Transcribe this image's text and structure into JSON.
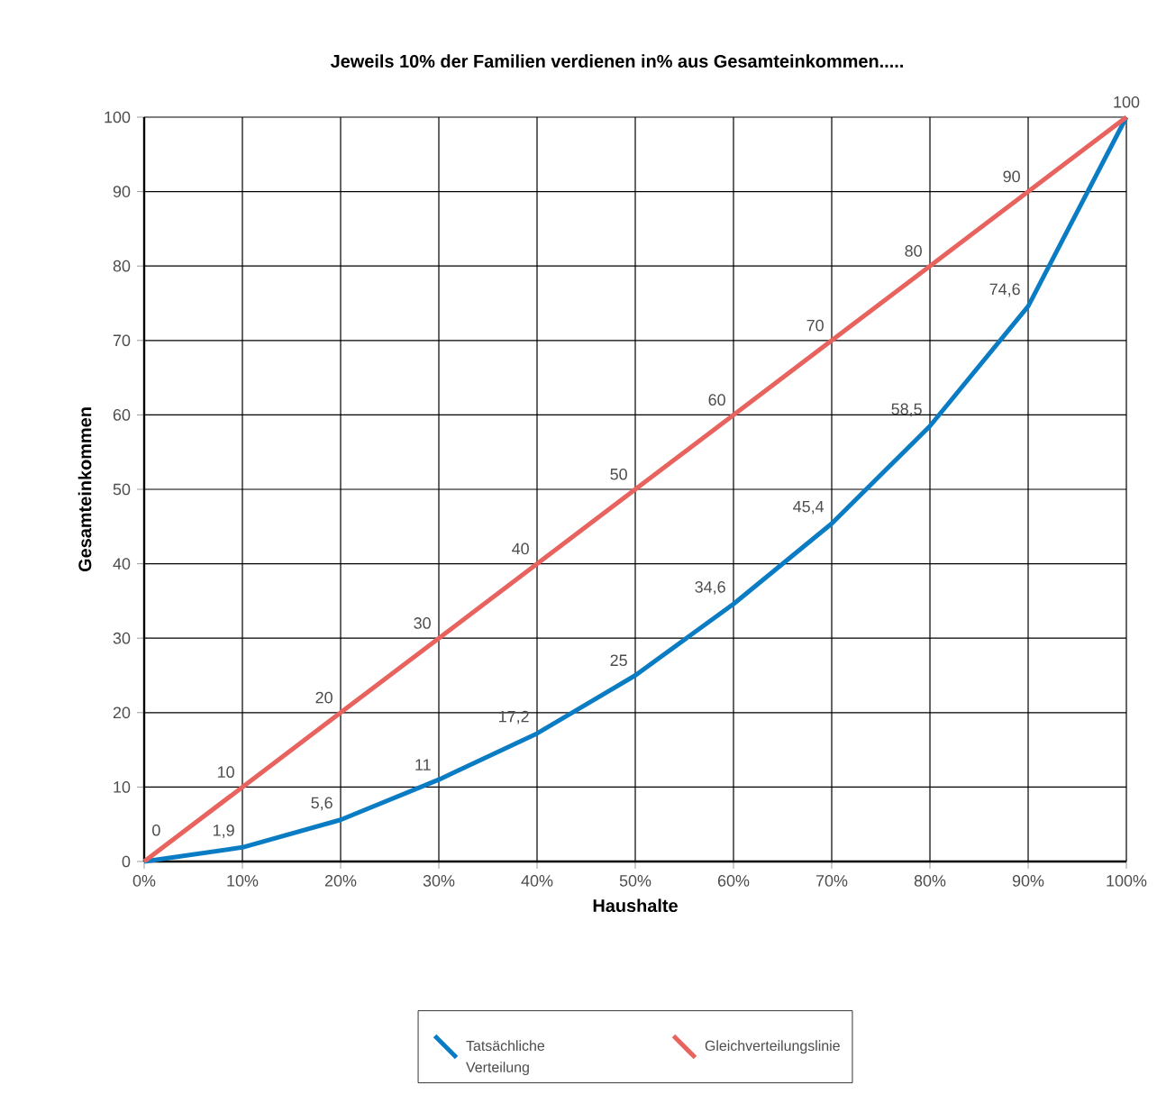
{
  "chart_data": {
    "type": "line",
    "title": "Jeweils 10% der Familien verdienen in% aus Gesamteinkommen.....",
    "xlabel": "Haushalte",
    "ylabel": "Gesamteinkommen",
    "x": [
      0,
      10,
      20,
      30,
      40,
      50,
      60,
      70,
      80,
      90,
      100
    ],
    "series": [
      {
        "name": "Tatsächliche Verteilung",
        "color": "#0a7cc4",
        "values": [
          0,
          1.9,
          5.6,
          11,
          17.2,
          25,
          34.6,
          45.4,
          58.5,
          74.6,
          100
        ],
        "value_labels": [
          null,
          "1,9",
          "5,6",
          "11",
          "17,2",
          "25",
          "34,6",
          "45,4",
          "58,5",
          "74,6",
          null
        ]
      },
      {
        "name": "Gleichverteilungslinie",
        "color": "#e8625e",
        "values": [
          0,
          10,
          20,
          30,
          40,
          50,
          60,
          70,
          80,
          90,
          100
        ],
        "value_labels": [
          "0",
          "10",
          "20",
          "30",
          "40",
          "50",
          "60",
          "70",
          "80",
          "90",
          "100"
        ]
      }
    ],
    "xlim": [
      0,
      100
    ],
    "ylim": [
      0,
      100
    ],
    "xticks": [
      {
        "value": 0,
        "label": "0%"
      },
      {
        "value": 10,
        "label": "10%"
      },
      {
        "value": 20,
        "label": "20%"
      },
      {
        "value": 30,
        "label": "30%"
      },
      {
        "value": 40,
        "label": "40%"
      },
      {
        "value": 50,
        "label": "50%"
      },
      {
        "value": 60,
        "label": "60%"
      },
      {
        "value": 70,
        "label": "70%"
      },
      {
        "value": 80,
        "label": "80%"
      },
      {
        "value": 90,
        "label": "90%"
      },
      {
        "value": 100,
        "label": "100%"
      }
    ],
    "yticks": [
      0,
      10,
      20,
      30,
      40,
      50,
      60,
      70,
      80,
      90,
      100
    ],
    "grid": true,
    "legend": "bottom"
  }
}
